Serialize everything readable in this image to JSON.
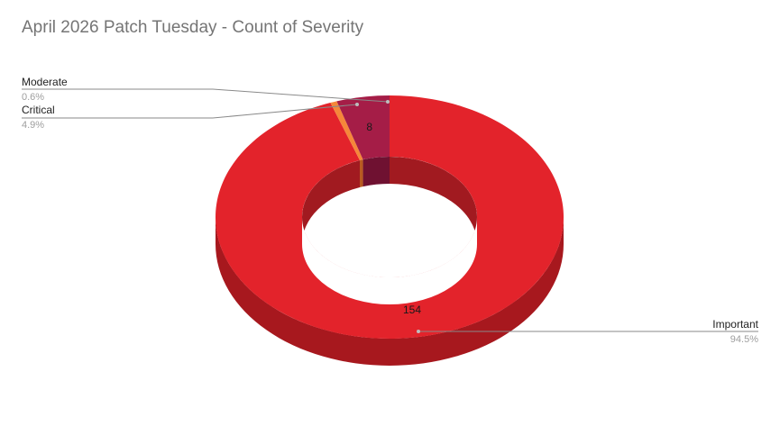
{
  "chart_data": {
    "type": "pie",
    "variant": "donut-3d",
    "title": "April 2026 Patch Tuesday - Count of Severity",
    "slices": [
      {
        "label": "Important",
        "value": 154,
        "percent": "94.5%",
        "data_label": "154",
        "color": "#e3232b",
        "side_color": "#a7181e",
        "inner_color": "#a11a20"
      },
      {
        "label": "Moderate",
        "value": 1,
        "percent": "0.6%",
        "data_label": "",
        "color": "#f5873a",
        "side_color": "#c5662a",
        "inner_color": "#b85a20"
      },
      {
        "label": "Critical",
        "value": 8,
        "percent": "4.9%",
        "data_label": "8",
        "color": "#a51d47",
        "side_color": "#7a1434",
        "inner_color": "#6f1131"
      }
    ],
    "legend": "callouts"
  }
}
